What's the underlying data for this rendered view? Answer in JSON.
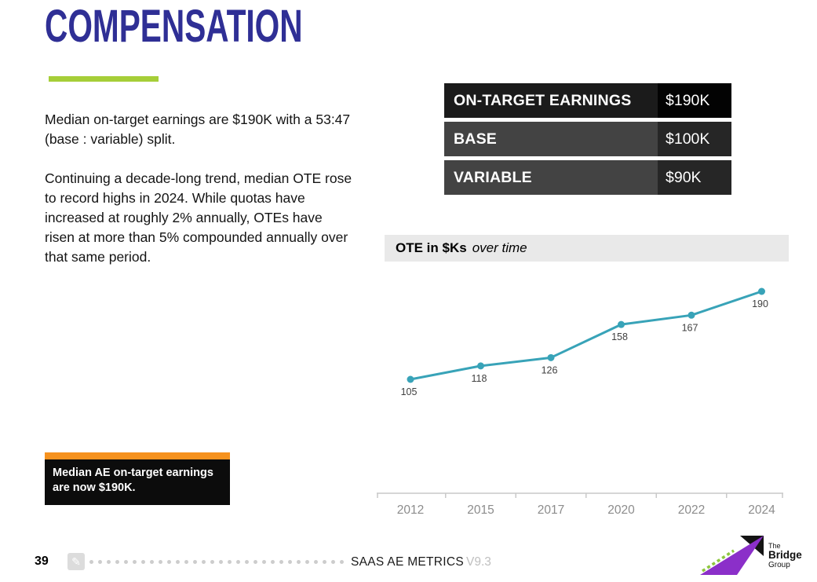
{
  "page": {
    "title": "COMPENSATION",
    "colors": {
      "title": "#2f2f95",
      "accent_green": "#a6ce38",
      "callout_orange": "#f6921e",
      "chart_line_teal": "#38a3b8"
    }
  },
  "body": {
    "paragraph1": "Median on-target earnings are $190K with a 53:47 (base : variable) split.",
    "paragraph2": "Continuing a decade-long trend, median OTE rose to record highs in 2024. While quotas have increased at roughly 2% annually, OTEs have risen at more than 5% compounded annually over that same period."
  },
  "metrics_table": {
    "rows": [
      {
        "label": "ON-TARGET EARNINGS",
        "value": "$190K"
      },
      {
        "label": "BASE",
        "value": "$100K"
      },
      {
        "label": "VARIABLE",
        "value": "$90K"
      }
    ]
  },
  "chart_header": {
    "title": "OTE in $Ks",
    "subtitle": "over time"
  },
  "chart_data": {
    "type": "line",
    "title": "OTE in $Ks over time",
    "categories": [
      "2012",
      "2015",
      "2017",
      "2020",
      "2022",
      "2024"
    ],
    "values": [
      105,
      118,
      126,
      158,
      167,
      190
    ],
    "xlabel": "",
    "ylabel": "OTE in $Ks",
    "ylim": [
      100,
      200
    ],
    "grid": false,
    "legend": "none",
    "line_color": "#38a3b8",
    "axis_color": "#c9c9c9",
    "value_label_color": "#3f3f3f",
    "tick_label_color": "#8c8c8c"
  },
  "callout": {
    "text": "Median AE on-target earnings are now $190K."
  },
  "footer": {
    "page_number": "39",
    "doc_title": "SAAS AE METRICS",
    "version": "V9.3"
  },
  "logo": {
    "line1": "The",
    "line2": "Bridge",
    "line3": "Group"
  },
  "icons": {
    "pencil": "✎"
  }
}
